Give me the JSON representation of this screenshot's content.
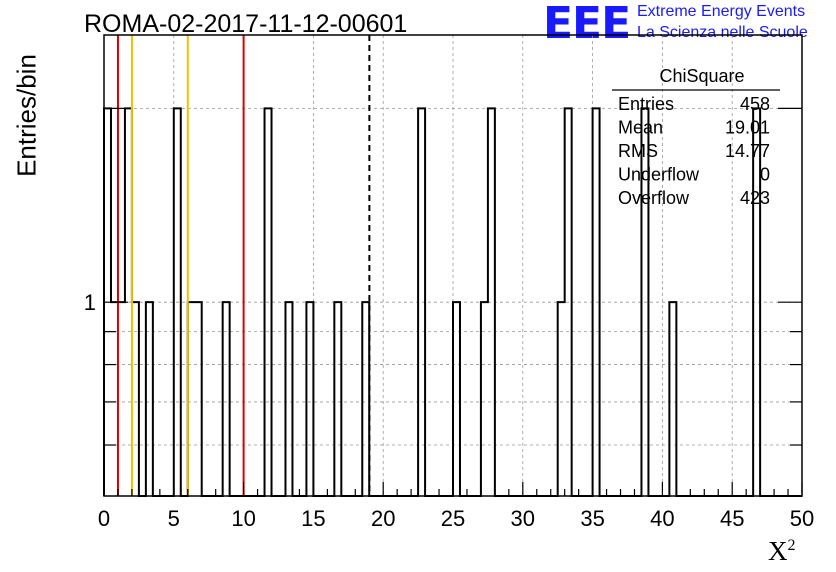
{
  "header": {
    "title": "ROMA-02-2017-11-12-00601",
    "logo_text": "EEE",
    "logo_line1": "Extreme Energy Events",
    "logo_line2": "La Scienza nelle Scuole"
  },
  "colors": {
    "histogram": "#000000",
    "red_lines": "#dd0000",
    "yellow_lines": "#f0c000",
    "logo": "#1a1aff",
    "grid": "#999999"
  },
  "stats_box": {
    "title": "ChiSquare",
    "rows": [
      {
        "label": "Entries",
        "value": "458"
      },
      {
        "label": "Mean",
        "value": "19.01"
      },
      {
        "label": "RMS",
        "value": "14.77"
      },
      {
        "label": "Underflow",
        "value": "0"
      },
      {
        "label": "Overflow",
        "value": "423"
      }
    ]
  },
  "chart_data": {
    "type": "bar",
    "title": "ROMA-02-2017-11-12-00601",
    "xlabel": "X",
    "xlabel_superscript": "2",
    "ylabel": "Entries/bin",
    "xlim": [
      0,
      50
    ],
    "ylim": [
      0.5,
      2.6
    ],
    "y_scale": "log",
    "grid": true,
    "bin_width": 0.5,
    "x_ticks": [
      "0",
      "5",
      "10",
      "15",
      "20",
      "25",
      "30",
      "35",
      "40",
      "45",
      "50"
    ],
    "y_ticks": [
      "1"
    ],
    "bins": [
      {
        "x": 0.0,
        "count": 2
      },
      {
        "x": 0.5,
        "count": 1
      },
      {
        "x": 1.0,
        "count": 1
      },
      {
        "x": 1.5,
        "count": 2
      },
      {
        "x": 2.0,
        "count": 1
      },
      {
        "x": 3.0,
        "count": 1
      },
      {
        "x": 5.0,
        "count": 2
      },
      {
        "x": 6.0,
        "count": 1
      },
      {
        "x": 6.5,
        "count": 1
      },
      {
        "x": 8.5,
        "count": 1
      },
      {
        "x": 11.5,
        "count": 2
      },
      {
        "x": 13.0,
        "count": 1
      },
      {
        "x": 14.5,
        "count": 1
      },
      {
        "x": 16.5,
        "count": 1
      },
      {
        "x": 18.5,
        "count": 1
      },
      {
        "x": 22.5,
        "count": 2
      },
      {
        "x": 25.0,
        "count": 1
      },
      {
        "x": 27.0,
        "count": 1
      },
      {
        "x": 27.5,
        "count": 2
      },
      {
        "x": 32.5,
        "count": 1
      },
      {
        "x": 33.0,
        "count": 2
      },
      {
        "x": 35.0,
        "count": 2
      },
      {
        "x": 38.5,
        "count": 2
      },
      {
        "x": 40.5,
        "count": 1
      },
      {
        "x": 46.5,
        "count": 2
      }
    ],
    "vertical_lines": [
      {
        "x": 1.0,
        "color": "red",
        "style": "solid"
      },
      {
        "x": 2.0,
        "color": "yellow",
        "style": "solid"
      },
      {
        "x": 6.0,
        "color": "yellow",
        "style": "solid"
      },
      {
        "x": 10.0,
        "color": "red",
        "style": "solid"
      },
      {
        "x": 19.01,
        "color": "black",
        "style": "dashed"
      }
    ]
  }
}
